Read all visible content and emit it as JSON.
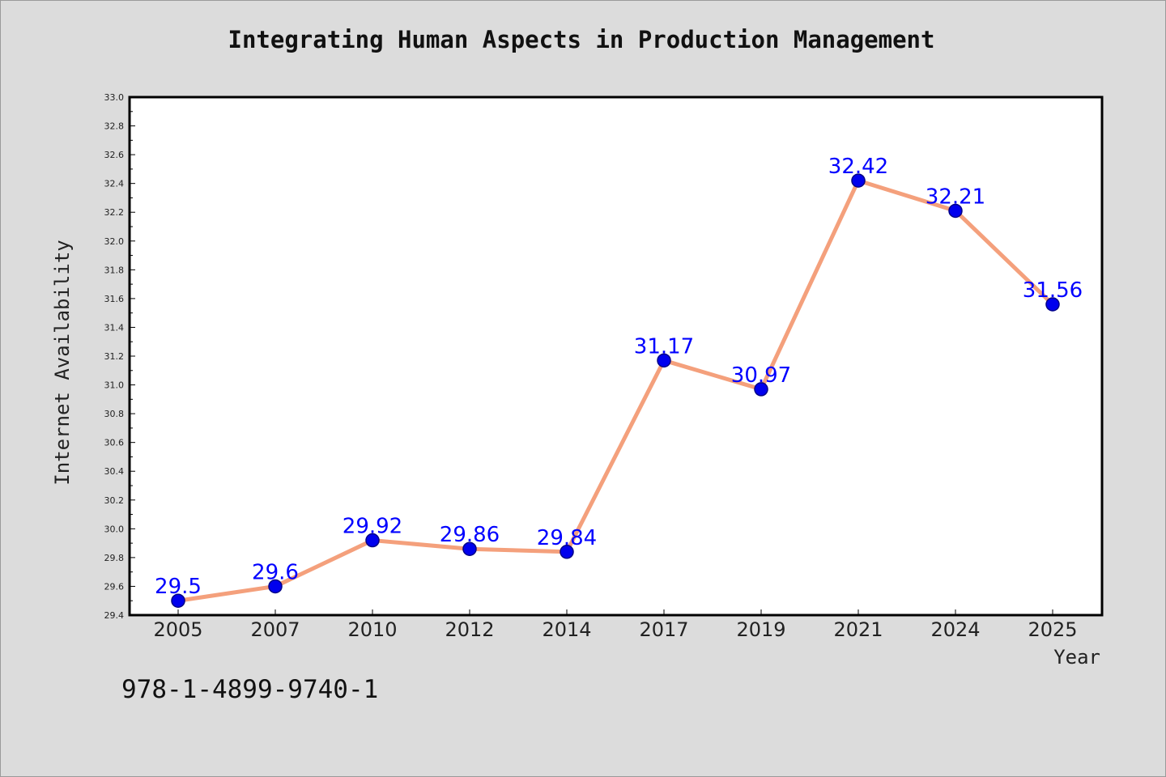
{
  "chart_data": {
    "type": "line",
    "title": "Integrating Human Aspects in Production Management",
    "xlabel": "Year",
    "ylabel": "Internet Availability",
    "categories": [
      "2005",
      "2007",
      "2010",
      "2012",
      "2014",
      "2017",
      "2019",
      "2021",
      "2024",
      "2025"
    ],
    "series": [
      {
        "values": [
          29.5,
          29.6,
          29.92,
          29.86,
          29.84,
          31.17,
          30.97,
          32.42,
          32.21,
          31.56
        ],
        "data_labels": [
          "29.5",
          "29.6",
          "29.92",
          "29.86",
          "29.84",
          "31.17",
          "30.97",
          "32.42",
          "32.21",
          "31.56"
        ]
      }
    ],
    "ylim": [
      29.4,
      33.0
    ],
    "yticks": [
      "29.4",
      "29.6",
      "29.8",
      "30.0",
      "30.2",
      "30.4",
      "30.6",
      "30.8",
      "31.0",
      "31.2",
      "31.4",
      "31.6",
      "31.8",
      "32.0",
      "32.2",
      "32.4",
      "32.6",
      "32.8",
      "33.0"
    ],
    "grid": false,
    "colors": {
      "line": "#f4a07c",
      "marker": "#0000ee",
      "marker_edge": "#000088",
      "data_label": "#0000ff",
      "plot_background": "#ffffff",
      "figure_background": "#dcdcdc"
    }
  },
  "footer": {
    "isbn": "978-1-4899-9740-1"
  }
}
